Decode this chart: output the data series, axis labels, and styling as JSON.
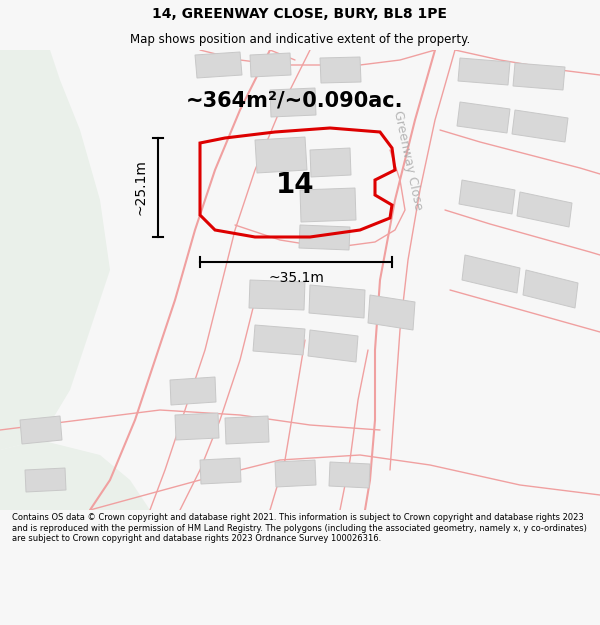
{
  "title_line1": "14, GREENWAY CLOSE, BURY, BL8 1PE",
  "title_line2": "Map shows position and indicative extent of the property.",
  "area_text": "~364m²/~0.090ac.",
  "number_label": "14",
  "width_label": "~35.1m",
  "height_label": "~25.1m",
  "street_label": "Greenway Close",
  "footer_text": "Contains OS data © Crown copyright and database right 2021. This information is subject to Crown copyright and database rights 2023 and is reproduced with the permission of HM Land Registry. The polygons (including the associated geometry, namely x, y co-ordinates) are subject to Crown copyright and database rights 2023 Ordnance Survey 100026316.",
  "bg_color": "#f7f7f7",
  "map_bg": "#ffffff",
  "green_area_color": "#eaf0ea",
  "plot_outline_color": "#dd0000",
  "plot_fill_color": "#ffffff",
  "building_color": "#d8d8d8",
  "building_edge": "#c8c8c8",
  "road_line_color": "#f0a0a0",
  "dim_line_color": "#000000",
  "title_fontsize": 10,
  "subtitle_fontsize": 8.5,
  "area_fontsize": 15,
  "number_fontsize": 20,
  "dim_fontsize": 10,
  "footer_fontsize": 6.0,
  "street_fontsize": 9
}
